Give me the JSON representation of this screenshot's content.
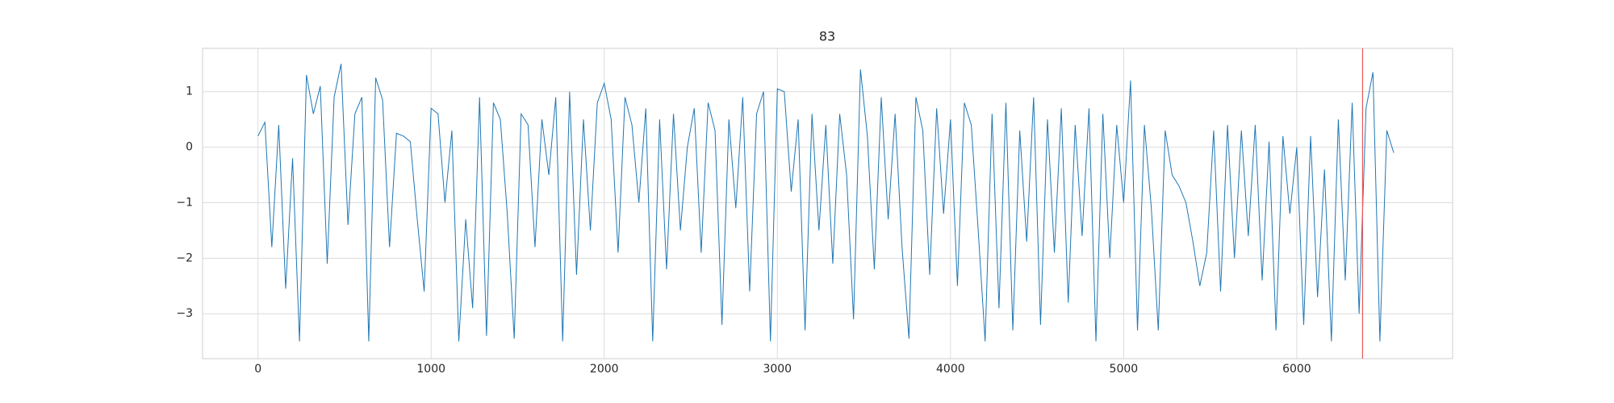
{
  "chart_data": {
    "type": "line",
    "title": "83",
    "x": [
      0,
      40,
      80,
      120,
      160,
      200,
      240,
      280,
      320,
      360,
      400,
      440,
      480,
      520,
      560,
      600,
      640,
      680,
      720,
      760,
      800,
      840,
      880,
      920,
      960,
      1000,
      1040,
      1080,
      1120,
      1160,
      1200,
      1240,
      1280,
      1320,
      1360,
      1400,
      1440,
      1480,
      1520,
      1560,
      1600,
      1640,
      1680,
      1720,
      1760,
      1800,
      1840,
      1880,
      1920,
      1960,
      2000,
      2040,
      2080,
      2120,
      2160,
      2200,
      2240,
      2280,
      2320,
      2360,
      2400,
      2440,
      2480,
      2520,
      2560,
      2600,
      2640,
      2680,
      2720,
      2760,
      2800,
      2840,
      2880,
      2920,
      2960,
      3000,
      3040,
      3080,
      3120,
      3160,
      3200,
      3240,
      3280,
      3320,
      3360,
      3400,
      3440,
      3480,
      3520,
      3560,
      3600,
      3640,
      3680,
      3720,
      3760,
      3800,
      3840,
      3880,
      3920,
      3960,
      4000,
      4040,
      4080,
      4120,
      4160,
      4200,
      4240,
      4280,
      4320,
      4360,
      4400,
      4440,
      4480,
      4520,
      4560,
      4600,
      4640,
      4680,
      4720,
      4760,
      4800,
      4840,
      4880,
      4920,
      4960,
      5000,
      5040,
      5080,
      5120,
      5160,
      5200,
      5240,
      5280,
      5320,
      5360,
      5400,
      5440,
      5480,
      5520,
      5560,
      5600,
      5640,
      5680,
      5720,
      5760,
      5800,
      5840,
      5880,
      5920,
      5960,
      6000,
      6040,
      6080,
      6120,
      6160,
      6200,
      6240,
      6280,
      6320,
      6360,
      6400,
      6440,
      6480,
      6520,
      6560
    ],
    "values": [
      0.2,
      0.45,
      -1.8,
      0.4,
      -2.55,
      -0.2,
      -3.5,
      1.3,
      0.6,
      1.1,
      -2.1,
      0.9,
      1.5,
      -1.4,
      0.6,
      0.9,
      -3.5,
      1.25,
      0.85,
      -1.8,
      0.25,
      0.2,
      0.1,
      -1.3,
      -2.6,
      0.7,
      0.6,
      -1.0,
      0.3,
      -3.5,
      -1.3,
      -2.9,
      0.9,
      -3.4,
      0.8,
      0.5,
      -1.2,
      -3.45,
      0.6,
      0.4,
      -1.8,
      0.5,
      -0.5,
      0.9,
      -3.5,
      1.0,
      -2.3,
      0.5,
      -1.5,
      0.8,
      1.15,
      0.5,
      -1.9,
      0.9,
      0.4,
      -1.0,
      0.7,
      -3.5,
      0.5,
      -2.2,
      0.6,
      -1.5,
      0.0,
      0.7,
      -1.9,
      0.8,
      0.3,
      -3.2,
      0.5,
      -1.1,
      0.9,
      -2.6,
      0.6,
      1.0,
      -3.5,
      1.05,
      1.0,
      -0.8,
      0.5,
      -3.3,
      0.6,
      -1.5,
      0.4,
      -2.1,
      0.6,
      -0.5,
      -3.1,
      1.4,
      0.2,
      -2.2,
      0.9,
      -1.3,
      0.6,
      -1.8,
      -3.45,
      0.9,
      0.3,
      -2.3,
      0.7,
      -1.2,
      0.5,
      -2.5,
      0.8,
      0.4,
      -1.5,
      -3.5,
      0.6,
      -2.9,
      0.8,
      -3.3,
      0.3,
      -1.7,
      0.9,
      -3.2,
      0.5,
      -1.9,
      0.7,
      -2.8,
      0.4,
      -1.6,
      0.7,
      -3.5,
      0.6,
      -2.0,
      0.4,
      -1.0,
      1.2,
      -3.3,
      0.4,
      -1.1,
      -3.3,
      0.3,
      -0.5,
      -0.7,
      -1.0,
      -1.7,
      -2.5,
      -1.9,
      0.3,
      -2.6,
      0.4,
      -2.0,
      0.3,
      -1.6,
      0.4,
      -2.4,
      0.1,
      -3.3,
      0.2,
      -1.2,
      0.0,
      -3.2,
      0.2,
      -2.7,
      -0.4,
      -3.5,
      0.5,
      -2.4,
      0.8,
      -3.0,
      0.7,
      1.35,
      -3.5,
      0.3,
      -0.1
    ],
    "color": "#1f77b4",
    "vline": {
      "x": 6380,
      "color": "#e8595a"
    },
    "xlim": [
      -320,
      6900
    ],
    "ylim": [
      -3.81,
      1.78
    ],
    "xticks": [
      0,
      1000,
      2000,
      3000,
      4000,
      5000,
      6000
    ],
    "yticks": [
      {
        "value": -3,
        "label": "−3"
      },
      {
        "value": -2,
        "label": "−2"
      },
      {
        "value": -1,
        "label": "−1"
      },
      0,
      1
    ],
    "grid": true
  }
}
